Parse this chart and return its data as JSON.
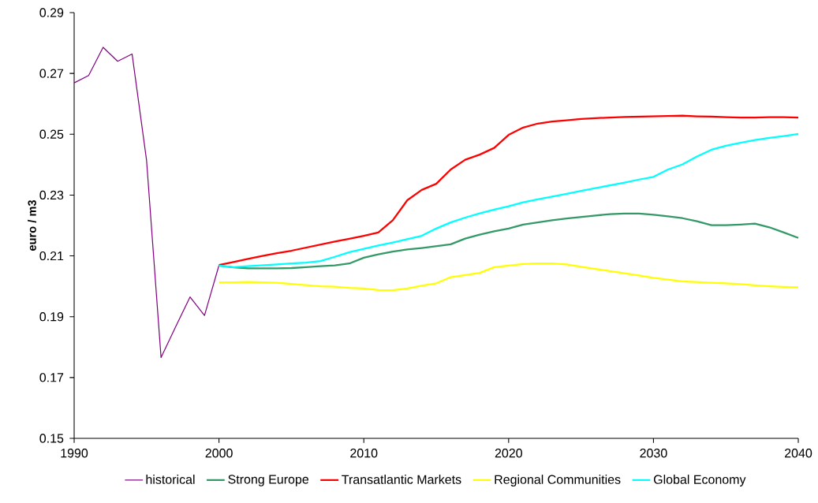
{
  "chart_data": {
    "type": "line",
    "ylabel": "euro / m3",
    "xlim": [
      1990,
      2040
    ],
    "xticks": [
      1990,
      2000,
      2010,
      2020,
      2030,
      2040
    ],
    "ylim": [
      0.15,
      0.29
    ],
    "yticks": [
      0.15,
      0.17,
      0.19,
      0.21,
      0.23,
      0.25,
      0.27,
      0.29
    ],
    "grid": false,
    "legend": "bottom",
    "marker": "none",
    "line_style": "solid",
    "series": [
      {
        "name": "historical",
        "color": "#800080",
        "x": [
          1990,
          1991,
          1992,
          1993,
          1994,
          1995,
          1996,
          1997,
          1998,
          1999,
          2000
        ],
        "values": [
          0.2669,
          0.2693,
          0.2786,
          0.274,
          0.2764,
          0.2414,
          0.1766,
          0.1866,
          0.1965,
          0.1904,
          0.2069
        ]
      },
      {
        "name": "Strong Europe",
        "color": "#339966",
        "x": [
          2000,
          2001,
          2002,
          2003,
          2004,
          2005,
          2006,
          2007,
          2008,
          2009,
          2010,
          2011,
          2012,
          2013,
          2014,
          2015,
          2016,
          2017,
          2018,
          2019,
          2020,
          2021,
          2022,
          2023,
          2024,
          2025,
          2026,
          2027,
          2028,
          2029,
          2030,
          2031,
          2032,
          2033,
          2034,
          2035,
          2036,
          2037,
          2038,
          2039,
          2040
        ],
        "values": [
          0.2068,
          0.2062,
          0.2059,
          0.2059,
          0.2059,
          0.206,
          0.2063,
          0.2066,
          0.2069,
          0.2075,
          0.2094,
          0.2105,
          0.2114,
          0.2121,
          0.2126,
          0.2132,
          0.2138,
          0.2157,
          0.217,
          0.2181,
          0.219,
          0.2203,
          0.221,
          0.2217,
          0.2223,
          0.2228,
          0.2233,
          0.2237,
          0.2239,
          0.2239,
          0.2235,
          0.223,
          0.2224,
          0.2214,
          0.2201,
          0.2201,
          0.2203,
          0.2206,
          0.2194,
          0.2177,
          0.2159
        ]
      },
      {
        "name": "Transatlantic Markets",
        "color": "#ff0000",
        "x": [
          2000,
          2001,
          2002,
          2003,
          2004,
          2005,
          2006,
          2007,
          2008,
          2009,
          2010,
          2011,
          2012,
          2013,
          2014,
          2015,
          2016,
          2017,
          2018,
          2019,
          2020,
          2021,
          2022,
          2023,
          2024,
          2025,
          2026,
          2027,
          2028,
          2029,
          2030,
          2031,
          2032,
          2033,
          2034,
          2035,
          2036,
          2037,
          2038,
          2039,
          2040
        ],
        "values": [
          0.207,
          0.208,
          0.209,
          0.21,
          0.2109,
          0.2117,
          0.2127,
          0.2137,
          0.2147,
          0.2156,
          0.2166,
          0.2177,
          0.2217,
          0.2283,
          0.2317,
          0.2337,
          0.2384,
          0.2416,
          0.2433,
          0.2455,
          0.2498,
          0.2522,
          0.2535,
          0.2542,
          0.2546,
          0.255,
          0.2553,
          0.2555,
          0.2557,
          0.2558,
          0.2559,
          0.256,
          0.2561,
          0.2559,
          0.2558,
          0.2556,
          0.2555,
          0.2555,
          0.2556,
          0.2556,
          0.2555
        ]
      },
      {
        "name": "Regional Communities",
        "color": "#ffff00",
        "x": [
          2000,
          2001,
          2002,
          2003,
          2004,
          2005,
          2006,
          2007,
          2008,
          2009,
          2010,
          2011,
          2012,
          2013,
          2014,
          2015,
          2016,
          2017,
          2018,
          2019,
          2020,
          2021,
          2022,
          2023,
          2024,
          2025,
          2026,
          2027,
          2028,
          2029,
          2030,
          2031,
          2032,
          2033,
          2034,
          2035,
          2036,
          2037,
          2038,
          2039,
          2040
        ],
        "values": [
          0.2013,
          0.2013,
          0.2014,
          0.2013,
          0.2012,
          0.2008,
          0.2004,
          0.2,
          0.1999,
          0.1995,
          0.1993,
          0.1988,
          0.1987,
          0.1993,
          0.2002,
          0.201,
          0.203,
          0.2037,
          0.2044,
          0.2063,
          0.2068,
          0.2073,
          0.2075,
          0.2075,
          0.2072,
          0.2064,
          0.2057,
          0.205,
          0.2043,
          0.2036,
          0.2028,
          0.2022,
          0.2016,
          0.2014,
          0.2012,
          0.201,
          0.2007,
          0.2003,
          0.2,
          0.1998,
          0.1997
        ]
      },
      {
        "name": "Global Economy",
        "color": "#00ffff",
        "x": [
          2000,
          2001,
          2002,
          2003,
          2004,
          2005,
          2006,
          2007,
          2008,
          2009,
          2010,
          2011,
          2012,
          2013,
          2014,
          2015,
          2016,
          2017,
          2018,
          2019,
          2020,
          2021,
          2022,
          2023,
          2024,
          2025,
          2026,
          2027,
          2028,
          2029,
          2030,
          2031,
          2032,
          2033,
          2034,
          2035,
          2036,
          2037,
          2038,
          2039,
          2040
        ],
        "values": [
          0.2068,
          0.2063,
          0.2066,
          0.2069,
          0.2072,
          0.2075,
          0.2078,
          0.2083,
          0.2097,
          0.2112,
          0.2123,
          0.2134,
          0.2144,
          0.2155,
          0.2166,
          0.219,
          0.221,
          0.2226,
          0.224,
          0.2252,
          0.2263,
          0.2276,
          0.2286,
          0.2295,
          0.2304,
          0.2314,
          0.2323,
          0.2332,
          0.2341,
          0.2351,
          0.236,
          0.2384,
          0.2401,
          0.2427,
          0.2449,
          0.2462,
          0.2472,
          0.2481,
          0.2488,
          0.2494,
          0.2501
        ]
      }
    ]
  }
}
